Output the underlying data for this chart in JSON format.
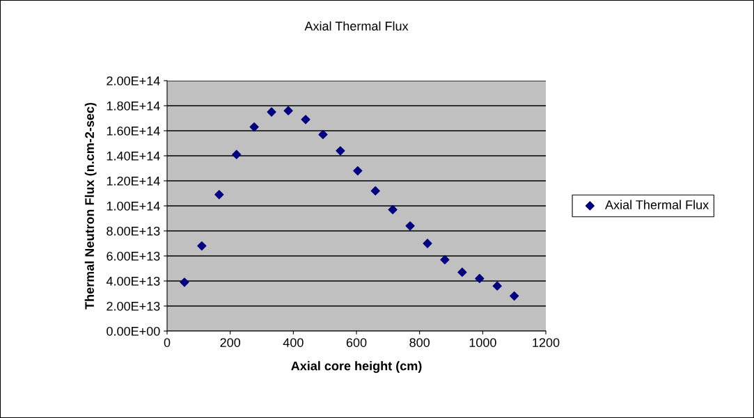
{
  "chart_data": {
    "type": "scatter",
    "title": "Axial Thermal Flux",
    "xlabel": "Axial core height (cm)",
    "ylabel": "Thermal Neutron Flux (n.cm-2-sec)",
    "series": [
      {
        "name": "Axial Thermal Flux",
        "color": "#000080",
        "x": [
          55,
          110,
          165,
          220,
          276,
          331,
          384,
          439,
          494,
          549,
          604,
          660,
          715,
          770,
          825,
          880,
          935,
          990,
          1046,
          1100
        ],
        "values": [
          39000000000000.0,
          68000000000000.0,
          109000000000000.0,
          141000000000000.0,
          163000000000000.0,
          175000000000000.0,
          176000000000000.0,
          169000000000000.0,
          157000000000000.0,
          144000000000000.0,
          128000000000000.0,
          112000000000000.0,
          97000000000000.0,
          84000000000000.0,
          70000000000000.0,
          57000000000000.0,
          47000000000000.0,
          42000000000000.0,
          36000000000000.0,
          28000000000000.0
        ]
      }
    ],
    "xlim": [
      0,
      1200
    ],
    "xticks": [
      0,
      200,
      400,
      600,
      800,
      1000,
      1200
    ],
    "ylim": [
      0,
      200000000000000.0
    ],
    "yticks": [
      {
        "value": 0,
        "label": "0.00E+00"
      },
      {
        "value": 20000000000000.0,
        "label": "2.00E+13"
      },
      {
        "value": 40000000000000.0,
        "label": "4.00E+13"
      },
      {
        "value": 60000000000000.0,
        "label": "6.00E+13"
      },
      {
        "value": 80000000000000.0,
        "label": "8.00E+13"
      },
      {
        "value": 100000000000000.0,
        "label": "1.00E+14"
      },
      {
        "value": 120000000000000.0,
        "label": "1.20E+14"
      },
      {
        "value": 140000000000000.0,
        "label": "1.40E+14"
      },
      {
        "value": 160000000000000.0,
        "label": "1.60E+14"
      },
      {
        "value": 180000000000000.0,
        "label": "1.80E+14"
      },
      {
        "value": 200000000000000.0,
        "label": "2.00E+14"
      }
    ],
    "grid": "y",
    "legend": "right",
    "marker": "diamond"
  }
}
